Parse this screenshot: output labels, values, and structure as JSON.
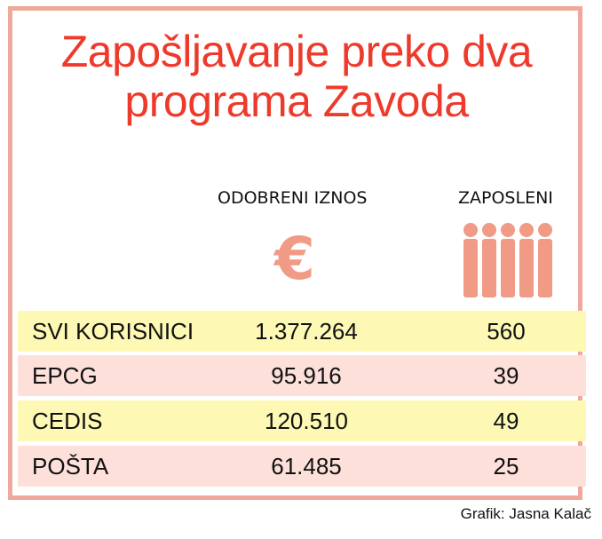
{
  "chart_data": {
    "type": "table",
    "title": "Zapošljavanje preko dva programa Zavoda",
    "columns": [
      "ODOBRENI IZNOS",
      "ZAPOSLENI"
    ],
    "rows": [
      {
        "name": "SVI KORISNICI",
        "amount": "1.377.264",
        "employed": "560"
      },
      {
        "name": "EPCG",
        "amount": "95.916",
        "employed": "39"
      },
      {
        "name": "CEDIS",
        "amount": "120.510",
        "employed": "49"
      },
      {
        "name": "POŠTA",
        "amount": "61.485",
        "employed": "25"
      }
    ],
    "icons": {
      "amount": "euro-icon",
      "employed": "people-icon"
    },
    "colors": {
      "title": "#ee3a2b",
      "icon": "#f19a86",
      "row_yellow": "#fdf9b4",
      "row_pink": "#fde0da",
      "border": "#f0a79c"
    }
  },
  "credit": "Grafik: Jasna Kalač"
}
